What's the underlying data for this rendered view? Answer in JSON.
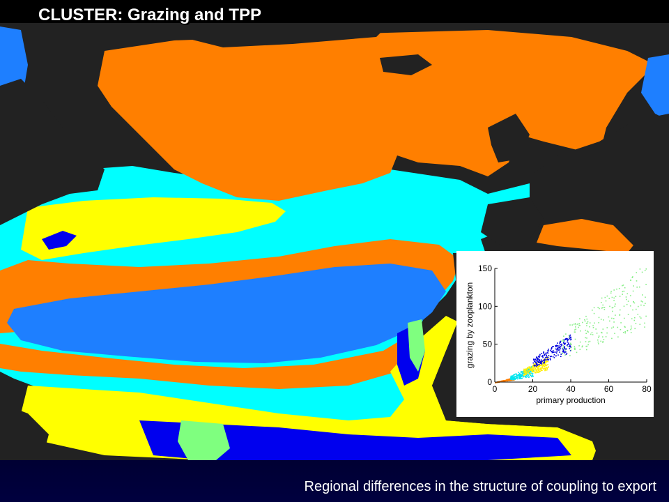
{
  "slide": {
    "title": "CLUSTER:  Grazing and TPP",
    "caption": "Regional differences in the structure of coupling to export"
  },
  "map": {
    "description_colors": {
      "land": "#222222",
      "orange": "#ff7f00",
      "cyan": "#00ffff",
      "yellow": "#ffff00",
      "mid_blue": "#1e7fff",
      "dark_blue": "#0000ee",
      "light_green": "#7fff7f"
    }
  },
  "chart_data": {
    "type": "scatter",
    "xlabel": "primary production",
    "ylabel": "grazing by zooplankton",
    "xlim": [
      0,
      80
    ],
    "ylim": [
      0,
      150
    ],
    "x_ticks": [
      "0",
      "20",
      "40",
      "60",
      "80"
    ],
    "y_ticks": [
      "0",
      "50",
      "100",
      "150"
    ],
    "grid": false,
    "series": [
      {
        "color": "#ff7f00",
        "x_range": [
          0,
          10
        ],
        "y_per_x": [
          0.35,
          0.65
        ]
      },
      {
        "color": "#00e5ee",
        "x_range": [
          8,
          20
        ],
        "y_per_x": [
          0.4,
          1.1
        ]
      },
      {
        "color": "#ffee00",
        "x_range": [
          15,
          28
        ],
        "y_per_x": [
          0.6,
          1.2
        ]
      },
      {
        "color": "#0000dd",
        "x_range": [
          20,
          40
        ],
        "y_per_x": [
          1.0,
          1.6
        ]
      },
      {
        "color": "#88ee88",
        "x_range": [
          35,
          80
        ],
        "y_per_x": [
          0.9,
          2.0
        ]
      }
    ]
  }
}
